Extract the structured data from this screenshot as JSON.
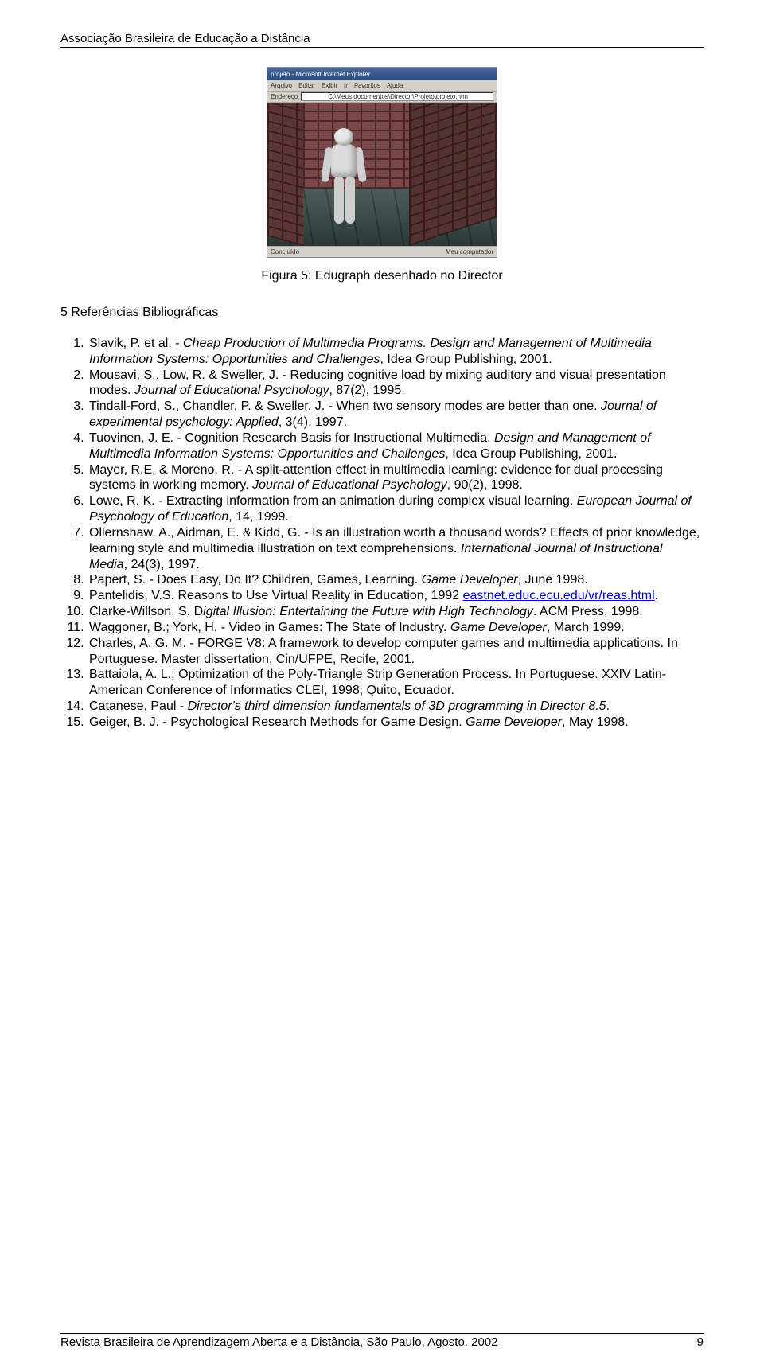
{
  "header": {
    "org": "Associação Brasileira de Educação a Distância"
  },
  "figure": {
    "window_title": "projeto - Microsoft Internet Explorer",
    "menu": [
      "Arquivo",
      "Editar",
      "Exibir",
      "Ir",
      "Favoritos",
      "Ajuda"
    ],
    "addr_label": "Endereço",
    "addr_value": "C:\\Meus documentos\\Director\\Projeto\\projeto.htm",
    "status_left": "Concluído",
    "status_right": "Meu computador",
    "caption": "Figura 5: Edugraph desenhado no Director"
  },
  "section_title": "5 Referências Bibliográficas",
  "refs": [
    {
      "parts": [
        {
          "t": "Slavik, P. et al. - "
        },
        {
          "t": "Cheap Production of Multimedia Programs. Design and Management of Multimedia Information Systems: Opportunities and Challenges",
          "i": true
        },
        {
          "t": ", Idea Group Publishing, 2001."
        }
      ]
    },
    {
      "parts": [
        {
          "t": "Mousavi, S., Low, R. & Sweller, J. - Reducing cognitive load by mixing auditory and visual presentation modes. "
        },
        {
          "t": "Journal of Educational Psychology",
          "i": true
        },
        {
          "t": ", 87(2), 1995."
        }
      ]
    },
    {
      "parts": [
        {
          "t": "Tindall-Ford, S., Chandler, P. & Sweller, J. - When two sensory modes are better than one. "
        },
        {
          "t": "Journal of experimental psychology: Applied",
          "i": true
        },
        {
          "t": ", 3(4), 1997."
        }
      ]
    },
    {
      "parts": [
        {
          "t": "Tuovinen, J. E. - Cognition Research Basis for Instructional Multimedia. "
        },
        {
          "t": "Design and Management of Multimedia Information Systems: Opportunities and Challenges",
          "i": true
        },
        {
          "t": ", Idea Group Publishing, 2001."
        }
      ]
    },
    {
      "parts": [
        {
          "t": "Mayer, R.E. & Moreno, R. - A split-attention effect in multimedia learning: evidence for dual processing systems in working memory. "
        },
        {
          "t": "Journal of Educational Psychology",
          "i": true
        },
        {
          "t": ", 90(2), 1998."
        }
      ]
    },
    {
      "parts": [
        {
          "t": "Lowe, R. K. - Extracting information from an animation during complex visual learning. "
        },
        {
          "t": "European Journal of Psychology of Education",
          "i": true
        },
        {
          "t": ", 14, 1999."
        }
      ]
    },
    {
      "parts": [
        {
          "t": "Ollernshaw, A., Aidman, E. & Kidd, G. - Is an illustration worth a thousand words? Effects of prior knowledge, learning style and multimedia illustration on text comprehensions. "
        },
        {
          "t": "International Journal of Instructional Media",
          "i": true
        },
        {
          "t": ", 24(3), 1997."
        }
      ]
    },
    {
      "parts": [
        {
          "t": "Papert, S. - Does Easy, Do It? Children, Games, Learning. "
        },
        {
          "t": "Game Developer",
          "i": true
        },
        {
          "t": ", June 1998."
        }
      ]
    },
    {
      "parts": [
        {
          "t": "Pantelidis, V.S. Reasons to Use Virtual Reality in Education, 1992 "
        },
        {
          "t": "eastnet.educ.ecu.edu/vr/reas.html",
          "link": true
        },
        {
          "t": "."
        }
      ]
    },
    {
      "parts": [
        {
          "t": "Clarke-Willson, S. D"
        },
        {
          "t": "igital Illusion: Entertaining the Future with High Technology",
          "i": true
        },
        {
          "t": ". ACM Press, 1998."
        }
      ]
    },
    {
      "parts": [
        {
          "t": "Waggoner, B.; York, H. - Video in Games: The State of Industry. "
        },
        {
          "t": "Game Developer",
          "i": true
        },
        {
          "t": ", March 1999."
        }
      ]
    },
    {
      "parts": [
        {
          "t": "Charles, A. G. M. - FORGE V8: A framework to develop computer games and multimedia applications. In Portuguese. Master dissertation, Cin/UFPE, Recife, 2001."
        }
      ]
    },
    {
      "parts": [
        {
          "t": "Battaiola, A. L.; Optimization of the Poly-Triangle Strip Generation Process. In Portuguese. XXIV Latin-American Conference of Informatics CLEI, 1998, Quito, Ecuador."
        }
      ]
    },
    {
      "parts": [
        {
          "t": "Catanese, Paul - "
        },
        {
          "t": "Director's third dimension fundamentals of 3D programming in Director 8.5",
          "i": true
        },
        {
          "t": "."
        }
      ]
    },
    {
      "parts": [
        {
          "t": "Geiger, B. J. - Psychological Research Methods for Game Design. "
        },
        {
          "t": "Game Developer",
          "i": true
        },
        {
          "t": ", May 1998."
        }
      ]
    }
  ],
  "footer": {
    "journal": "Revista Brasileira de Aprendizagem Aberta e a Distância, São Paulo, Agosto. 2002",
    "page": "9"
  }
}
